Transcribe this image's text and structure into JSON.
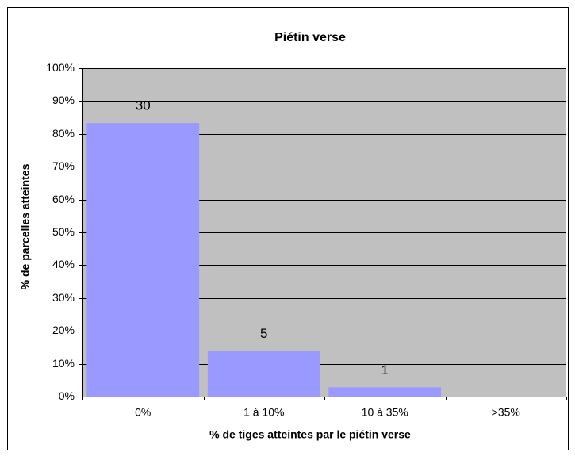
{
  "chart_data": {
    "type": "bar",
    "title": "Piétin verse",
    "x_label": "% de tiges atteintes par le piétin verse",
    "y_label": "% de parcelles atteintes",
    "categories": [
      "0%",
      "1 à 10%",
      "10 à 35%",
      ">35%"
    ],
    "values": [
      83.3,
      13.9,
      2.8,
      0
    ],
    "data_labels": [
      30,
      5,
      1,
      null
    ],
    "color": "#9999ff",
    "ylim": [
      0,
      100
    ],
    "yticks": [
      {
        "value": 0,
        "label": "0%"
      },
      {
        "value": 10,
        "label": "10%"
      },
      {
        "value": 20,
        "label": "20%"
      },
      {
        "value": 30,
        "label": "30%"
      },
      {
        "value": 40,
        "label": "40%"
      },
      {
        "value": 50,
        "label": "50%"
      },
      {
        "value": 60,
        "label": "60%"
      },
      {
        "value": 70,
        "label": "70%"
      },
      {
        "value": 80,
        "label": "80%"
      },
      {
        "value": 90,
        "label": "90%"
      },
      {
        "value": 100,
        "label": "100%"
      }
    ],
    "grid": true
  }
}
